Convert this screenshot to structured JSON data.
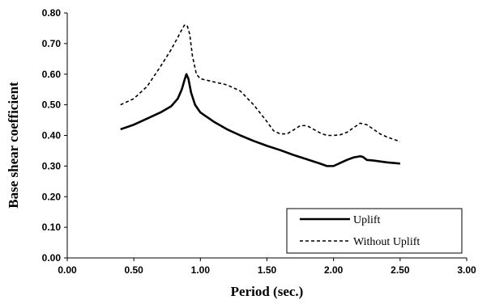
{
  "chart_data": {
    "type": "line",
    "title": "",
    "xlabel": "Period (sec.)",
    "ylabel": "Base shear coefficient",
    "xlim": [
      0,
      3
    ],
    "ylim": [
      0,
      0.8
    ],
    "xticks": [
      "0.00",
      "0.50",
      "1.00",
      "1.50",
      "2.00",
      "2.50",
      "3.00"
    ],
    "yticks": [
      "0.00",
      "0.10",
      "0.20",
      "0.30",
      "0.40",
      "0.50",
      "0.60",
      "0.70",
      "0.80"
    ],
    "grid": false,
    "legend_position": "bottom-right",
    "series": [
      {
        "name": "Uplift",
        "style": "solid",
        "color": "#000000",
        "x": [
          0.4,
          0.5,
          0.6,
          0.7,
          0.78,
          0.83,
          0.86,
          0.88,
          0.895,
          0.91,
          0.93,
          0.96,
          1.0,
          1.1,
          1.2,
          1.3,
          1.4,
          1.5,
          1.6,
          1.7,
          1.8,
          1.9,
          1.95,
          2.0,
          2.05,
          2.1,
          2.15,
          2.2,
          2.22,
          2.25,
          2.3,
          2.4,
          2.5
        ],
        "y": [
          0.42,
          0.435,
          0.455,
          0.475,
          0.495,
          0.52,
          0.55,
          0.58,
          0.6,
          0.585,
          0.54,
          0.5,
          0.475,
          0.445,
          0.42,
          0.4,
          0.382,
          0.366,
          0.352,
          0.336,
          0.322,
          0.308,
          0.3,
          0.3,
          0.31,
          0.32,
          0.328,
          0.332,
          0.33,
          0.32,
          0.318,
          0.312,
          0.308
        ]
      },
      {
        "name": "Without Uplift",
        "style": "dashed",
        "color": "#000000",
        "x": [
          0.4,
          0.5,
          0.6,
          0.7,
          0.78,
          0.83,
          0.86,
          0.88,
          0.9,
          0.92,
          0.94,
          0.97,
          1.0,
          1.1,
          1.2,
          1.3,
          1.4,
          1.5,
          1.55,
          1.6,
          1.65,
          1.7,
          1.75,
          1.8,
          1.85,
          1.9,
          1.95,
          2.0,
          2.05,
          2.1,
          2.15,
          2.2,
          2.25,
          2.3,
          2.35,
          2.4,
          2.5
        ],
        "y": [
          0.5,
          0.52,
          0.56,
          0.625,
          0.68,
          0.72,
          0.745,
          0.76,
          0.76,
          0.73,
          0.66,
          0.6,
          0.585,
          0.575,
          0.565,
          0.545,
          0.5,
          0.445,
          0.415,
          0.405,
          0.405,
          0.418,
          0.432,
          0.432,
          0.42,
          0.408,
          0.4,
          0.4,
          0.402,
          0.41,
          0.425,
          0.44,
          0.435,
          0.42,
          0.405,
          0.395,
          0.38
        ]
      }
    ]
  }
}
